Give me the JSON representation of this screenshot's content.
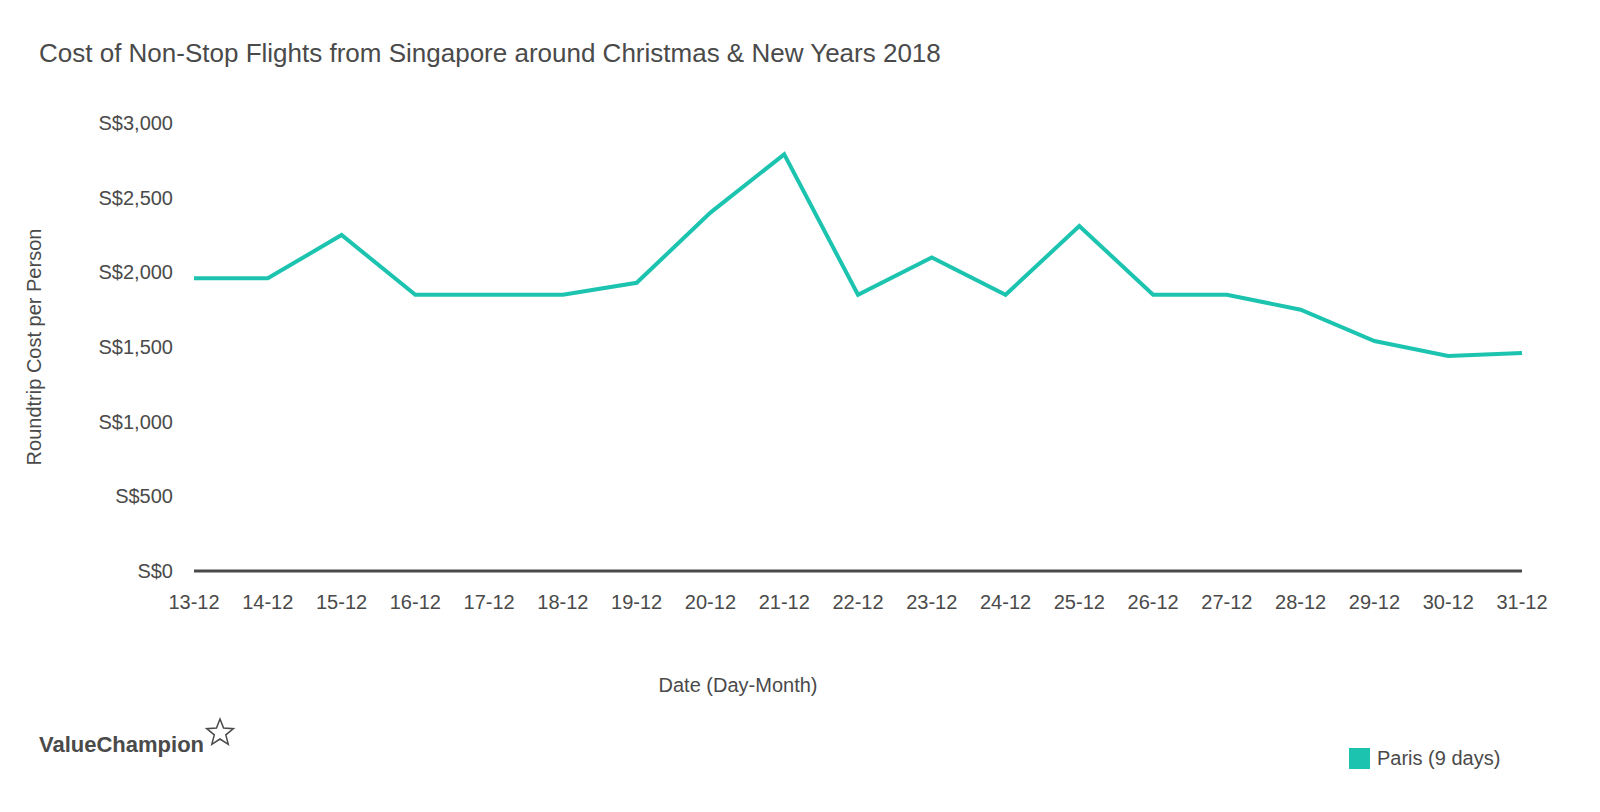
{
  "chart_data": {
    "type": "line",
    "title": "Cost of Non-Stop Flights from Singapore around Christmas & New Years 2018",
    "x_label": "Date (Day-Month)",
    "y_label": "Roundtrip Cost per Person",
    "annotations": [
      "ValueChampion"
    ],
    "categories": [
      "13-12",
      "14-12",
      "15-12",
      "16-12",
      "17-12",
      "18-12",
      "19-12",
      "20-12",
      "21-12",
      "22-12",
      "23-12",
      "24-12",
      "25-12",
      "26-12",
      "27-12",
      "28-12",
      "29-12",
      "30-12",
      "31-12"
    ],
    "series": [
      {
        "name": "Paris (9 days)",
        "color": "#1cc4b0",
        "values": [
          1960,
          1960,
          2250,
          1850,
          1850,
          1850,
          1930,
          2400,
          2790,
          1850,
          2100,
          1850,
          2310,
          1850,
          1850,
          1750,
          1540,
          1440,
          1460
        ]
      }
    ],
    "ylim": [
      0,
      3000
    ],
    "yticks": [
      {
        "value": 0,
        "label": "S$0"
      },
      {
        "value": 500,
        "label": "S$500"
      },
      {
        "value": 1000,
        "label": "S$1,000"
      },
      {
        "value": 1500,
        "label": "S$1,500"
      },
      {
        "value": 2000,
        "label": "S$2,000"
      },
      {
        "value": 2500,
        "label": "S$2,500"
      },
      {
        "value": 3000,
        "label": "S$3,000"
      }
    ],
    "grid": false,
    "legend": "bottom-right"
  }
}
